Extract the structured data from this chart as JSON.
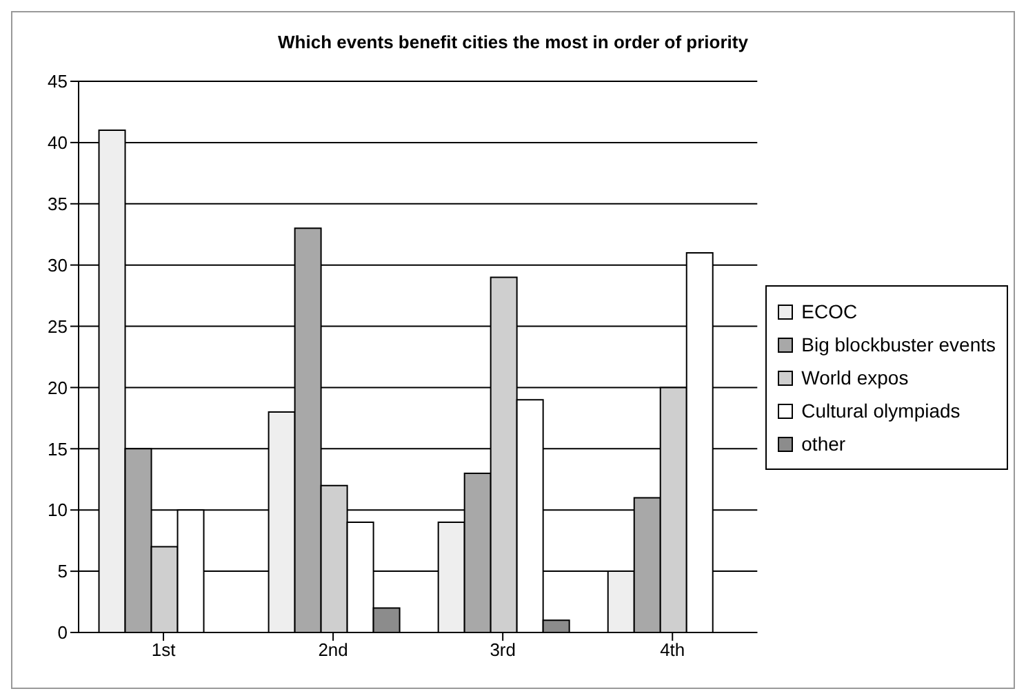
{
  "chart_data": {
    "type": "bar",
    "title": "Which events benefit cities the most in order of priority",
    "categories": [
      "1st",
      "2nd",
      "3rd",
      "4th"
    ],
    "series": [
      {
        "name": "ECOC",
        "color": "#eeeeee",
        "values": [
          41,
          18,
          9,
          5
        ]
      },
      {
        "name": "Big blockbuster events",
        "color": "#a8a8a8",
        "values": [
          15,
          33,
          13,
          11
        ]
      },
      {
        "name": "World expos",
        "color": "#cfcfcf",
        "values": [
          7,
          12,
          29,
          20
        ]
      },
      {
        "name": "Cultural olympiads",
        "color": "#ffffff",
        "values": [
          10,
          9,
          19,
          31
        ]
      },
      {
        "name": "other",
        "color": "#8c8c8c",
        "values": [
          0,
          2,
          1,
          0
        ]
      }
    ],
    "ylim": [
      0,
      45
    ],
    "yticks": [
      0,
      5,
      10,
      15,
      20,
      25,
      30,
      35,
      40,
      45
    ],
    "grid": "y",
    "legend": "right"
  }
}
